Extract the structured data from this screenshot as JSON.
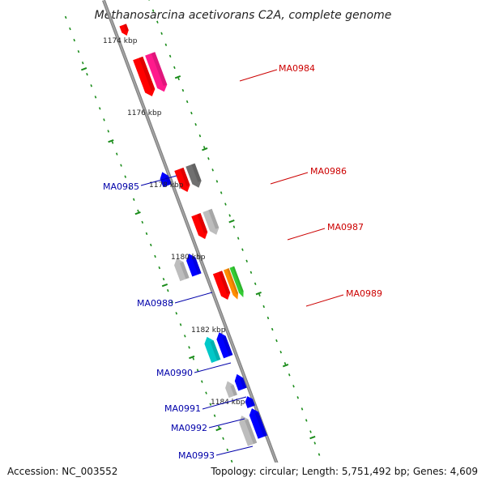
{
  "title": "Methanosarcina acetivorans C2A, complete genome",
  "footer": {
    "accession": "Accession: NC_003552",
    "summary": "Topology: circular; Length: 5,751,492 bp; Genes: 4,609"
  },
  "ticks": [
    "1174 kbp",
    "1176 kbp",
    "1178 kbp",
    "1180 kbp",
    "1182 kbp",
    "1184 kbp"
  ],
  "genes_plus": [
    {
      "name": "MA0984",
      "color": "#ff1a8c"
    },
    {
      "name": "MA0986",
      "color": "#707070"
    },
    {
      "name": "MA0987",
      "color": "#bdbdbd"
    },
    {
      "name": "MA0989",
      "color": "#ff8c00"
    }
  ],
  "genes_minus": [
    {
      "name": "MA0985",
      "color": "#0000ff"
    },
    {
      "name": "MA0988",
      "color": "#0000ff"
    },
    {
      "name": "MA0990",
      "color": "#00c8c8"
    },
    {
      "name": "MA0991",
      "color": "#0000ff"
    },
    {
      "name": "MA0992",
      "color": "#0000ff"
    },
    {
      "name": "MA0993",
      "color": "#0000ff"
    }
  ],
  "colors": {
    "plus_label": "#cc0000",
    "minus_label": "#0000aa",
    "backbone": "#8c8c8c",
    "tick_green": "#1a8c1a",
    "cog_red": "#ff0000",
    "cog_green": "#33cc33",
    "cog_gray": "#bdbdbd",
    "cog_blue": "#0000ff"
  }
}
